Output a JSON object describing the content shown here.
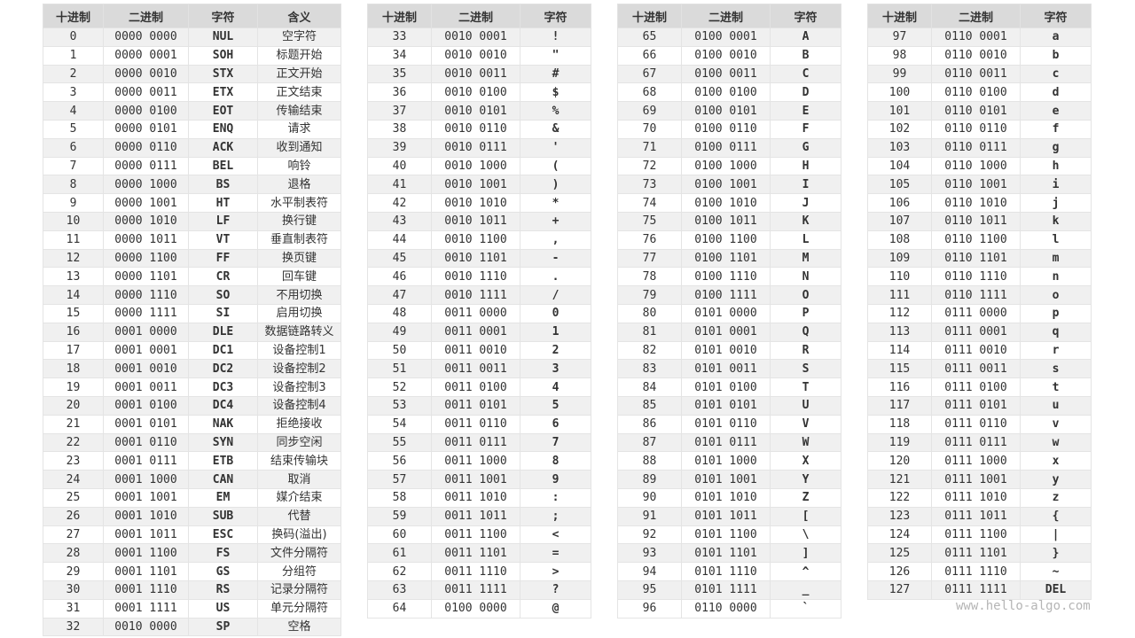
{
  "tables": [
    {
      "headers": [
        "十进制",
        "二进制",
        "字符",
        "含义"
      ],
      "rows": [
        [
          "0",
          "0000 0000",
          "NUL",
          "空字符"
        ],
        [
          "1",
          "0000 0001",
          "SOH",
          "标题开始"
        ],
        [
          "2",
          "0000 0010",
          "STX",
          "正文开始"
        ],
        [
          "3",
          "0000 0011",
          "ETX",
          "正文结束"
        ],
        [
          "4",
          "0000 0100",
          "EOT",
          "传输结束"
        ],
        [
          "5",
          "0000 0101",
          "ENQ",
          "请求"
        ],
        [
          "6",
          "0000 0110",
          "ACK",
          "收到通知"
        ],
        [
          "7",
          "0000 0111",
          "BEL",
          "响铃"
        ],
        [
          "8",
          "0000 1000",
          "BS",
          "退格"
        ],
        [
          "9",
          "0000 1001",
          "HT",
          "水平制表符"
        ],
        [
          "10",
          "0000 1010",
          "LF",
          "换行键"
        ],
        [
          "11",
          "0000 1011",
          "VT",
          "垂直制表符"
        ],
        [
          "12",
          "0000 1100",
          "FF",
          "换页键"
        ],
        [
          "13",
          "0000 1101",
          "CR",
          "回车键"
        ],
        [
          "14",
          "0000 1110",
          "SO",
          "不用切换"
        ],
        [
          "15",
          "0000 1111",
          "SI",
          "启用切换"
        ],
        [
          "16",
          "0001 0000",
          "DLE",
          "数据链路转义"
        ],
        [
          "17",
          "0001 0001",
          "DC1",
          "设备控制1"
        ],
        [
          "18",
          "0001 0010",
          "DC2",
          "设备控制2"
        ],
        [
          "19",
          "0001 0011",
          "DC3",
          "设备控制3"
        ],
        [
          "20",
          "0001 0100",
          "DC4",
          "设备控制4"
        ],
        [
          "21",
          "0001 0101",
          "NAK",
          "拒绝接收"
        ],
        [
          "22",
          "0001 0110",
          "SYN",
          "同步空闲"
        ],
        [
          "23",
          "0001 0111",
          "ETB",
          "结束传输块"
        ],
        [
          "24",
          "0001 1000",
          "CAN",
          "取消"
        ],
        [
          "25",
          "0001 1001",
          "EM",
          "媒介结束"
        ],
        [
          "26",
          "0001 1010",
          "SUB",
          "代替"
        ],
        [
          "27",
          "0001 1011",
          "ESC",
          "换码(溢出)"
        ],
        [
          "28",
          "0001 1100",
          "FS",
          "文件分隔符"
        ],
        [
          "29",
          "0001 1101",
          "GS",
          "分组符"
        ],
        [
          "30",
          "0001 1110",
          "RS",
          "记录分隔符"
        ],
        [
          "31",
          "0001 1111",
          "US",
          "单元分隔符"
        ],
        [
          "32",
          "0010 0000",
          "SP",
          "空格"
        ]
      ]
    },
    {
      "headers": [
        "十进制",
        "二进制",
        "字符"
      ],
      "rows": [
        [
          "33",
          "0010 0001",
          "!"
        ],
        [
          "34",
          "0010 0010",
          "\""
        ],
        [
          "35",
          "0010 0011",
          "#"
        ],
        [
          "36",
          "0010 0100",
          "$"
        ],
        [
          "37",
          "0010 0101",
          "%"
        ],
        [
          "38",
          "0010 0110",
          "&"
        ],
        [
          "39",
          "0010 0111",
          "'"
        ],
        [
          "40",
          "0010 1000",
          "("
        ],
        [
          "41",
          "0010 1001",
          ")"
        ],
        [
          "42",
          "0010 1010",
          "*"
        ],
        [
          "43",
          "0010 1011",
          "+"
        ],
        [
          "44",
          "0010 1100",
          ","
        ],
        [
          "45",
          "0010 1101",
          "-"
        ],
        [
          "46",
          "0010 1110",
          "."
        ],
        [
          "47",
          "0010 1111",
          "/"
        ],
        [
          "48",
          "0011 0000",
          "0"
        ],
        [
          "49",
          "0011 0001",
          "1"
        ],
        [
          "50",
          "0011 0010",
          "2"
        ],
        [
          "51",
          "0011 0011",
          "3"
        ],
        [
          "52",
          "0011 0100",
          "4"
        ],
        [
          "53",
          "0011 0101",
          "5"
        ],
        [
          "54",
          "0011 0110",
          "6"
        ],
        [
          "55",
          "0011 0111",
          "7"
        ],
        [
          "56",
          "0011 1000",
          "8"
        ],
        [
          "57",
          "0011 1001",
          "9"
        ],
        [
          "58",
          "0011 1010",
          ":"
        ],
        [
          "59",
          "0011 1011",
          ";"
        ],
        [
          "60",
          "0011 1100",
          "<"
        ],
        [
          "61",
          "0011 1101",
          "="
        ],
        [
          "62",
          "0011 1110",
          ">"
        ],
        [
          "63",
          "0011 1111",
          "?"
        ],
        [
          "64",
          "0100 0000",
          "@"
        ]
      ]
    },
    {
      "headers": [
        "十进制",
        "二进制",
        "字符"
      ],
      "rows": [
        [
          "65",
          "0100 0001",
          "A"
        ],
        [
          "66",
          "0100 0010",
          "B"
        ],
        [
          "67",
          "0100 0011",
          "C"
        ],
        [
          "68",
          "0100 0100",
          "D"
        ],
        [
          "69",
          "0100 0101",
          "E"
        ],
        [
          "70",
          "0100 0110",
          "F"
        ],
        [
          "71",
          "0100 0111",
          "G"
        ],
        [
          "72",
          "0100 1000",
          "H"
        ],
        [
          "73",
          "0100 1001",
          "I"
        ],
        [
          "74",
          "0100 1010",
          "J"
        ],
        [
          "75",
          "0100 1011",
          "K"
        ],
        [
          "76",
          "0100 1100",
          "L"
        ],
        [
          "77",
          "0100 1101",
          "M"
        ],
        [
          "78",
          "0100 1110",
          "N"
        ],
        [
          "79",
          "0100 1111",
          "O"
        ],
        [
          "80",
          "0101 0000",
          "P"
        ],
        [
          "81",
          "0101 0001",
          "Q"
        ],
        [
          "82",
          "0101 0010",
          "R"
        ],
        [
          "83",
          "0101 0011",
          "S"
        ],
        [
          "84",
          "0101 0100",
          "T"
        ],
        [
          "85",
          "0101 0101",
          "U"
        ],
        [
          "86",
          "0101 0110",
          "V"
        ],
        [
          "87",
          "0101 0111",
          "W"
        ],
        [
          "88",
          "0101 1000",
          "X"
        ],
        [
          "89",
          "0101 1001",
          "Y"
        ],
        [
          "90",
          "0101 1010",
          "Z"
        ],
        [
          "91",
          "0101 1011",
          "["
        ],
        [
          "92",
          "0101 1100",
          "\\"
        ],
        [
          "93",
          "0101 1101",
          "]"
        ],
        [
          "94",
          "0101 1110",
          "^"
        ],
        [
          "95",
          "0101 1111",
          "_"
        ],
        [
          "96",
          "0110 0000",
          "`"
        ]
      ]
    },
    {
      "headers": [
        "十进制",
        "二进制",
        "字符"
      ],
      "rows": [
        [
          "97",
          "0110 0001",
          "a"
        ],
        [
          "98",
          "0110 0010",
          "b"
        ],
        [
          "99",
          "0110 0011",
          "c"
        ],
        [
          "100",
          "0110 0100",
          "d"
        ],
        [
          "101",
          "0110 0101",
          "e"
        ],
        [
          "102",
          "0110 0110",
          "f"
        ],
        [
          "103",
          "0110 0111",
          "g"
        ],
        [
          "104",
          "0110 1000",
          "h"
        ],
        [
          "105",
          "0110 1001",
          "i"
        ],
        [
          "106",
          "0110 1010",
          "j"
        ],
        [
          "107",
          "0110 1011",
          "k"
        ],
        [
          "108",
          "0110 1100",
          "l"
        ],
        [
          "109",
          "0110 1101",
          "m"
        ],
        [
          "110",
          "0110 1110",
          "n"
        ],
        [
          "111",
          "0110 1111",
          "o"
        ],
        [
          "112",
          "0111 0000",
          "p"
        ],
        [
          "113",
          "0111 0001",
          "q"
        ],
        [
          "114",
          "0111 0010",
          "r"
        ],
        [
          "115",
          "0111 0011",
          "s"
        ],
        [
          "116",
          "0111 0100",
          "t"
        ],
        [
          "117",
          "0111 0101",
          "u"
        ],
        [
          "118",
          "0111 0110",
          "v"
        ],
        [
          "119",
          "0111 0111",
          "w"
        ],
        [
          "120",
          "0111 1000",
          "x"
        ],
        [
          "121",
          "0111 1001",
          "y"
        ],
        [
          "122",
          "0111 1010",
          "z"
        ],
        [
          "123",
          "0111 1011",
          "{"
        ],
        [
          "124",
          "0111 1100",
          "|"
        ],
        [
          "125",
          "0111 1101",
          "}"
        ],
        [
          "126",
          "0111 1110",
          "~"
        ],
        [
          "127",
          "0111 1111",
          "DEL"
        ]
      ]
    }
  ],
  "watermark": "www.hello-algo.com"
}
